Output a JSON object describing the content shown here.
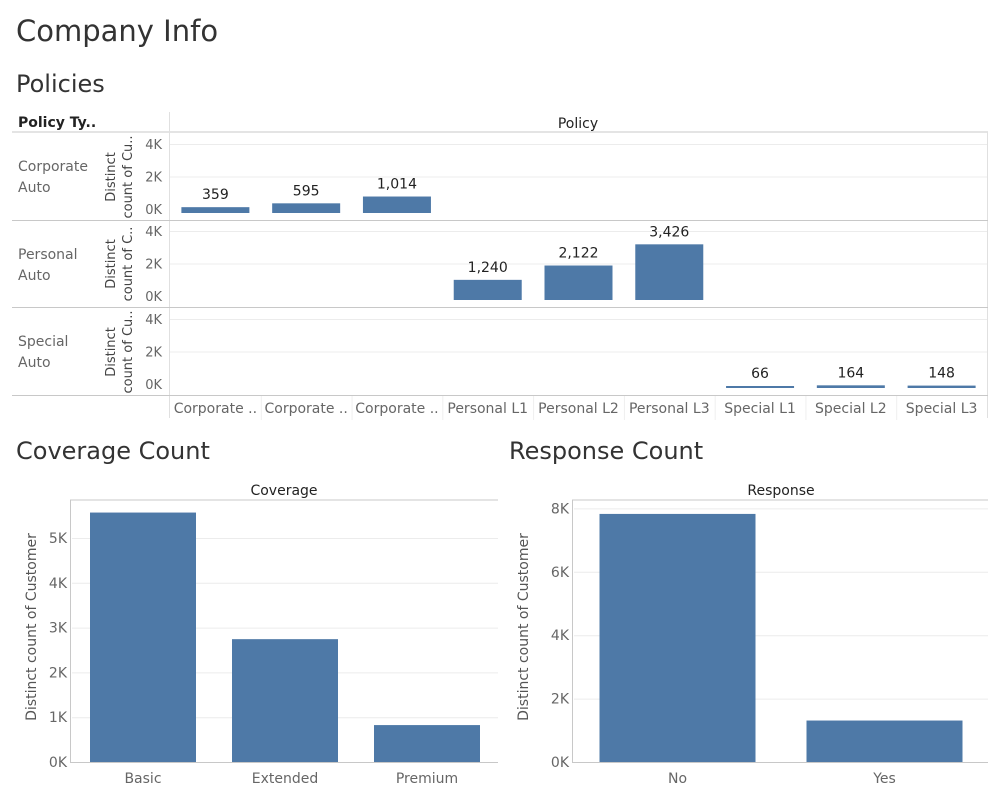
{
  "page": {
    "title": "Company Info"
  },
  "policies": {
    "title": "Policies",
    "row_header": "Policy Ty..",
    "col_header": "Policy",
    "axis_label_lines": [
      "Distinct",
      "count of Cu.."
    ],
    "axis_label_lines_alt": [
      "Distinct",
      "count of C.."
    ],
    "yticks": [
      "4K",
      "2K",
      "0K"
    ]
  },
  "coverage": {
    "title": "Coverage Count",
    "col_header": "Coverage",
    "ylabel": "Distinct count of Customer",
    "yticks": [
      "5K",
      "4K",
      "3K",
      "2K",
      "1K",
      "0K"
    ]
  },
  "response": {
    "title": "Response Count",
    "col_header": "Response",
    "ylabel": "Distinct count of Customer",
    "yticks": [
      "8K",
      "6K",
      "4K",
      "2K",
      "0K"
    ]
  },
  "colors": {
    "bar": "#4e79a7",
    "grid": "#ececec",
    "rule": "#c8c8c8",
    "muted": "#6a6a6a"
  },
  "chart_data": [
    {
      "type": "bar",
      "title": "Policies",
      "rows": [
        "Corporate Auto",
        "Personal Auto",
        "Special Auto"
      ],
      "categories": [
        "Corporate ..",
        "Corporate ..",
        "Corporate ..",
        "Personal L1",
        "Personal L2",
        "Personal L3",
        "Special L1",
        "Special L2",
        "Special L3"
      ],
      "values": [
        [
          359,
          595,
          1014,
          null,
          null,
          null,
          null,
          null,
          null
        ],
        [
          null,
          null,
          null,
          1240,
          2122,
          3426,
          null,
          null,
          null
        ],
        [
          null,
          null,
          null,
          null,
          null,
          null,
          66,
          164,
          148
        ]
      ],
      "labels": [
        [
          "359",
          "595",
          "1,014",
          "",
          "",
          "",
          "",
          "",
          ""
        ],
        [
          "",
          "",
          "",
          "1,240",
          "2,122",
          "3,426",
          "",
          "",
          ""
        ],
        [
          "",
          "",
          "",
          "",
          "",
          "",
          "66",
          "164",
          "148"
        ]
      ],
      "ylim": [
        0,
        4500
      ]
    },
    {
      "type": "bar",
      "title": "Coverage Count",
      "categories": [
        "Basic",
        "Extended",
        "Premium"
      ],
      "values": [
        5568,
        2742,
        824
      ],
      "ylabel": "Distinct count of Customer",
      "ylim": [
        0,
        5800
      ]
    },
    {
      "type": "bar",
      "title": "Response Count",
      "categories": [
        "No",
        "Yes"
      ],
      "values": [
        7826,
        1308
      ],
      "ylabel": "Distinct count of Customer",
      "ylim": [
        0,
        8300
      ]
    }
  ]
}
